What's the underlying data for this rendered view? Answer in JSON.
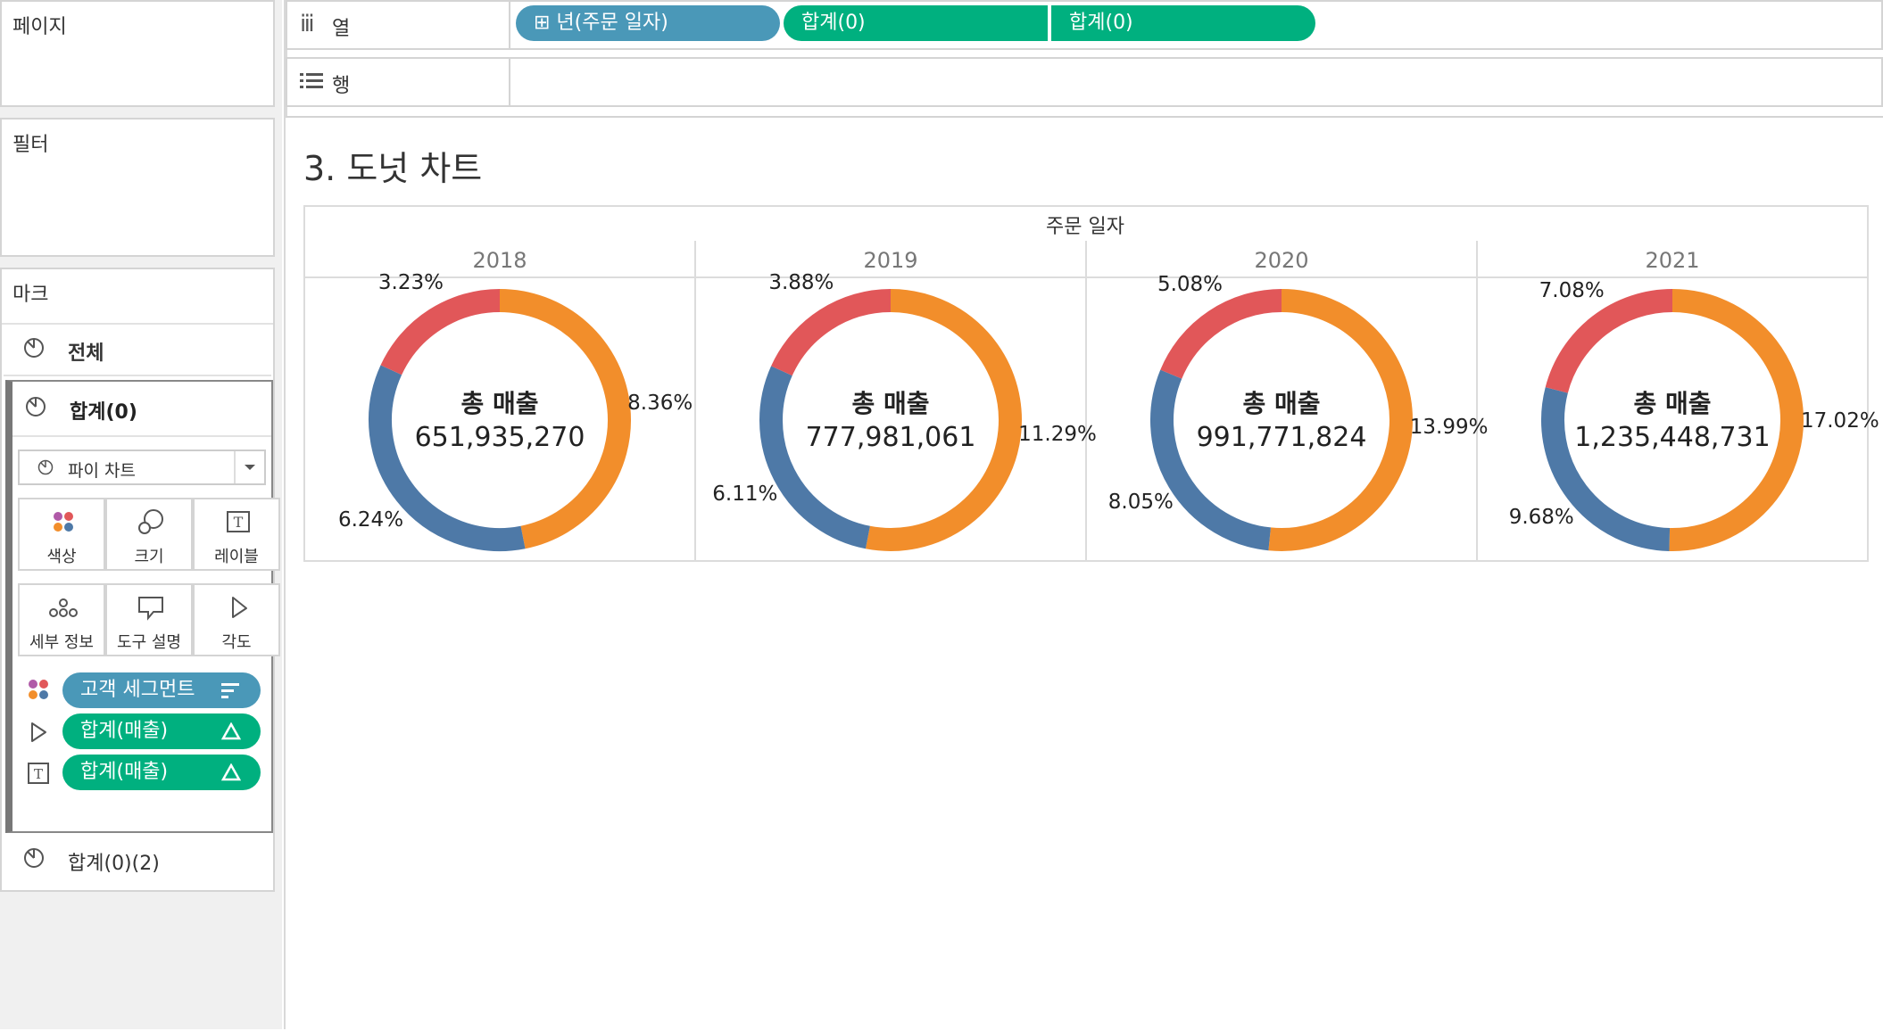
{
  "left": {
    "pages_title": "페이지",
    "filters_title": "필터",
    "marks_title": "마크",
    "marks_all": "전체",
    "marks_active": "합계(0)",
    "mark_type": "파이 차트",
    "cards": {
      "color": "색상",
      "size": "크기",
      "label": "레이블",
      "detail": "세부 정보",
      "tooltip": "도구 설명",
      "angle": "각도"
    },
    "fields": [
      {
        "label": "고객 세그먼트",
        "color": "#4a98b8"
      },
      {
        "label": "합계(매출)",
        "color": "#00b07f"
      },
      {
        "label": "합계(매출)",
        "color": "#00b07f"
      }
    ],
    "marks_second": "합계(0)(2)"
  },
  "shelves": {
    "columns_label": "열",
    "rows_label": "행",
    "column_pills": [
      "⊞ 년(주문 일자)",
      "합계(0)",
      "합계(0)"
    ]
  },
  "sheet": {
    "title": "3. 도넛 차트",
    "header": "주문 일자"
  },
  "colors": {
    "red": "#e15759",
    "orange": "#f28e2b",
    "blue": "#4e79a7"
  },
  "chart_data": {
    "type": "pie",
    "xlabel": "주문 일자",
    "center_title": "총 매출",
    "legend_order": [
      "red",
      "orange",
      "blue"
    ],
    "panels": [
      {
        "year": "2018",
        "total": "651,935,270",
        "slices": {
          "red": 3.23,
          "orange": 8.36,
          "blue": 6.24
        }
      },
      {
        "year": "2019",
        "total": "777,981,061",
        "slices": {
          "red": 3.88,
          "orange": 11.29,
          "blue": 6.11
        }
      },
      {
        "year": "2020",
        "total": "991,771,824",
        "slices": {
          "red": 5.08,
          "orange": 13.99,
          "blue": 8.05
        }
      },
      {
        "year": "2021",
        "total": "1,235,448,731",
        "slices": {
          "red": 7.08,
          "orange": 17.02,
          "blue": 9.68
        }
      }
    ]
  }
}
